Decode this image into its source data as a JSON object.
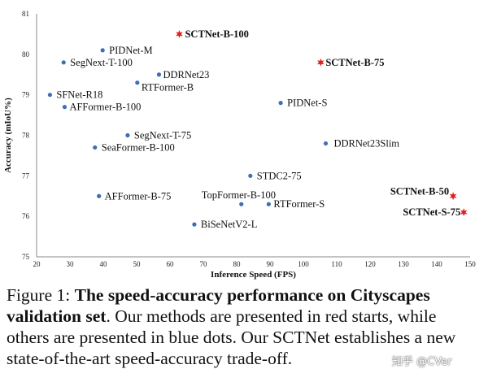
{
  "chart_data": {
    "type": "scatter",
    "title": "",
    "xlabel": "Inference Speed (FPS)",
    "ylabel": "Accuracy (mIoU%)",
    "xlim": [
      20,
      150
    ],
    "ylim": [
      75,
      81
    ],
    "xticks": [
      "20",
      "30",
      "40",
      "50",
      "60",
      "70",
      "80",
      "90",
      "100",
      "110",
      "120",
      "130",
      "140",
      "150"
    ],
    "yticks": [
      "75",
      "76",
      "77",
      "78",
      "79",
      "80",
      "81"
    ],
    "grid": false,
    "colors": {
      "ours": "#e0201c",
      "others": "#3c6fb4"
    },
    "points": [
      {
        "label": "PIDNet-M",
        "x": 39.8,
        "y": 80.1,
        "ours": false
      },
      {
        "label": "SegNext-T-100",
        "x": 28.1,
        "y": 79.8,
        "ours": false
      },
      {
        "label": "DDRNet23",
        "x": 56.7,
        "y": 79.5,
        "ours": false
      },
      {
        "label": "RTFormer-B",
        "x": 50.2,
        "y": 79.3,
        "ours": false
      },
      {
        "label": "SFNet-R18",
        "x": 24.0,
        "y": 79.0,
        "ours": false
      },
      {
        "label": "AFFormer-B-100",
        "x": 28.4,
        "y": 78.7,
        "ours": false
      },
      {
        "label": "PIDNet-S",
        "x": 93.2,
        "y": 78.8,
        "ours": false
      },
      {
        "label": "SegNext-T-75",
        "x": 47.3,
        "y": 78.0,
        "ours": false
      },
      {
        "label": "SeaFormer-B-100",
        "x": 37.5,
        "y": 77.7,
        "ours": false
      },
      {
        "label": "DDRNet23Slim",
        "x": 106.7,
        "y": 77.8,
        "ours": false
      },
      {
        "label": "STDC2-75",
        "x": 84.1,
        "y": 77.0,
        "ours": false
      },
      {
        "label": "AFFormer-B-75",
        "x": 38.7,
        "y": 76.5,
        "ours": false
      },
      {
        "label": "TopFormer-B-100",
        "x": 81.4,
        "y": 76.3,
        "ours": false
      },
      {
        "label": "RTFormer-S",
        "x": 89.6,
        "y": 76.3,
        "ours": false
      },
      {
        "label": "BiSeNetV2-L",
        "x": 67.3,
        "y": 75.8,
        "ours": false
      },
      {
        "label": "SCTNet-B-100",
        "x": 62.8,
        "y": 80.5,
        "ours": true
      },
      {
        "label": "SCTNet-B-75",
        "x": 105.2,
        "y": 79.8,
        "ours": true
      },
      {
        "label": "SCTNet-B-50",
        "x": 144.9,
        "y": 76.5,
        "ours": true
      },
      {
        "label": "SCTNet-S-75",
        "x": 148.1,
        "y": 76.1,
        "ours": true
      }
    ]
  },
  "caption": {
    "prefix": "Figure 1: ",
    "bold": "The speed-accuracy performance on Cityscapes validation set",
    "rest": ". Our methods are presented in red starts, while others are presented in blue dots. Our SCTNet establishes a new state-of-the-art speed-accuracy trade-off."
  },
  "watermark": "知乎 @CVer"
}
